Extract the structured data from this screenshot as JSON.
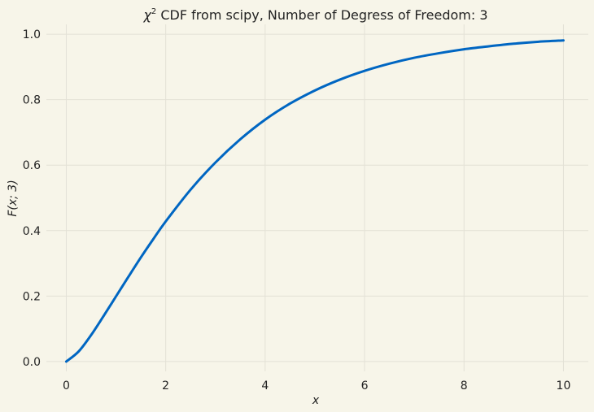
{
  "chart_data": {
    "type": "line",
    "title": "χ² CDF from scipy, Number of Degress of Freedom: 3",
    "title_parts": {
      "symbol": "χ",
      "superscript": "2",
      "rest": " CDF from scipy, Number of Degress of Freedom: 3"
    },
    "xlabel": "x",
    "ylabel": "F(x; 3)",
    "xlim": [
      -0.4,
      10.5
    ],
    "ylim": [
      -0.03,
      1.03
    ],
    "xticks": [
      0,
      2,
      4,
      6,
      8,
      10
    ],
    "xtick_labels": [
      "0",
      "2",
      "4",
      "6",
      "8",
      "10"
    ],
    "yticks": [
      0.0,
      0.2,
      0.4,
      0.6,
      0.8,
      1.0
    ],
    "ytick_labels": [
      "0.0",
      "0.2",
      "0.4",
      "0.6",
      "0.8",
      "1.0"
    ],
    "grid": true,
    "legend": "none",
    "line_color": "#0066c2",
    "background_color": "#f7f5e9",
    "grid_color": "#e3e1d6",
    "series": [
      {
        "x": [
          0,
          0.25,
          0.5,
          0.75,
          1,
          1.25,
          1.5,
          1.75,
          2,
          2.5,
          3,
          3.5,
          4,
          4.5,
          5,
          5.5,
          6,
          6.5,
          7,
          7.5,
          8,
          8.5,
          9,
          9.5,
          10
        ],
        "values": [
          0,
          0.031,
          0.081,
          0.139,
          0.199,
          0.259,
          0.318,
          0.374,
          0.428,
          0.525,
          0.608,
          0.679,
          0.739,
          0.788,
          0.828,
          0.861,
          0.888,
          0.91,
          0.928,
          0.942,
          0.954,
          0.963,
          0.971,
          0.977,
          0.981
        ]
      }
    ]
  }
}
